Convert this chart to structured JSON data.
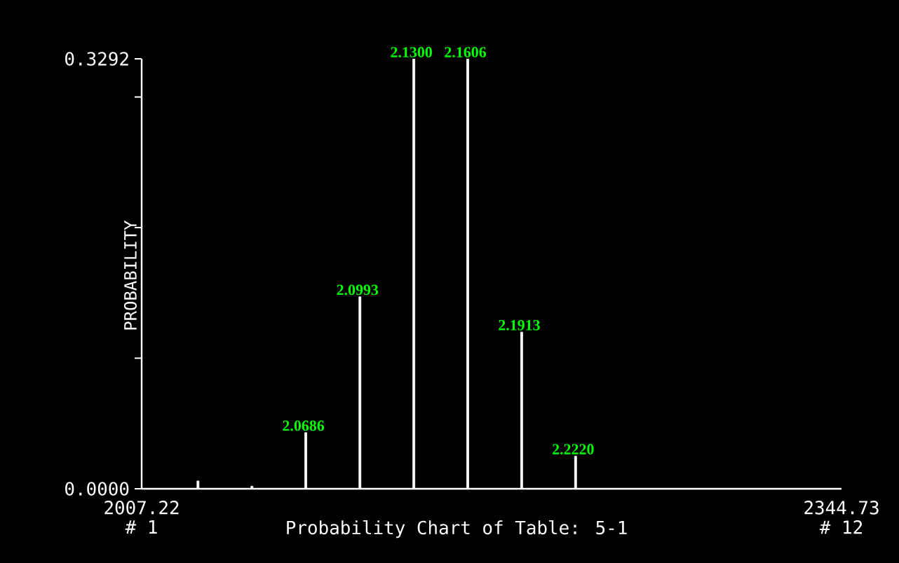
{
  "chart_data": {
    "type": "bar",
    "title": "Probability Chart of Table: 5-1",
    "ylabel": "PROBABILITY",
    "x": [
      2033.2,
      2059.2,
      2085.2,
      2111.3,
      2137.3,
      2163.3,
      2189.3,
      2215.3
    ],
    "series": [
      {
        "color": "#ffffff",
        "values": [
          0.006,
          0.002,
          0.043,
          0.147,
          0.329,
          0.329,
          0.12,
          0.025
        ]
      }
    ],
    "xlim": [
      2007.22,
      2344.73
    ],
    "xticks": [
      2007.22,
      2344.73
    ],
    "ylim": [
      0,
      0.3292
    ],
    "yticks": [
      {
        "value": 0,
        "label": "0.0000"
      },
      {
        "value": 0.1,
        "label": null
      },
      {
        "value": 0.2,
        "label": null
      },
      {
        "value": 0.3,
        "label": null
      },
      {
        "value": 0.3292,
        "label": "0.3292"
      }
    ],
    "annotations": [
      "# 1",
      "# 12",
      {
        "text": "2.0686",
        "x": 2085.2,
        "y": 0.043
      },
      {
        "text": "2.0993",
        "x": 2111.3,
        "y": 0.147
      },
      {
        "text": "2.1300",
        "x": 2137.3,
        "y": 0.329
      },
      {
        "text": "2.1606",
        "x": 2163.3,
        "y": 0.329
      },
      {
        "text": "2.1913",
        "x": 2189.3,
        "y": 0.12
      },
      {
        "text": "2.2220",
        "x": 2215.3,
        "y": 0.025
      }
    ],
    "grid": false
  }
}
